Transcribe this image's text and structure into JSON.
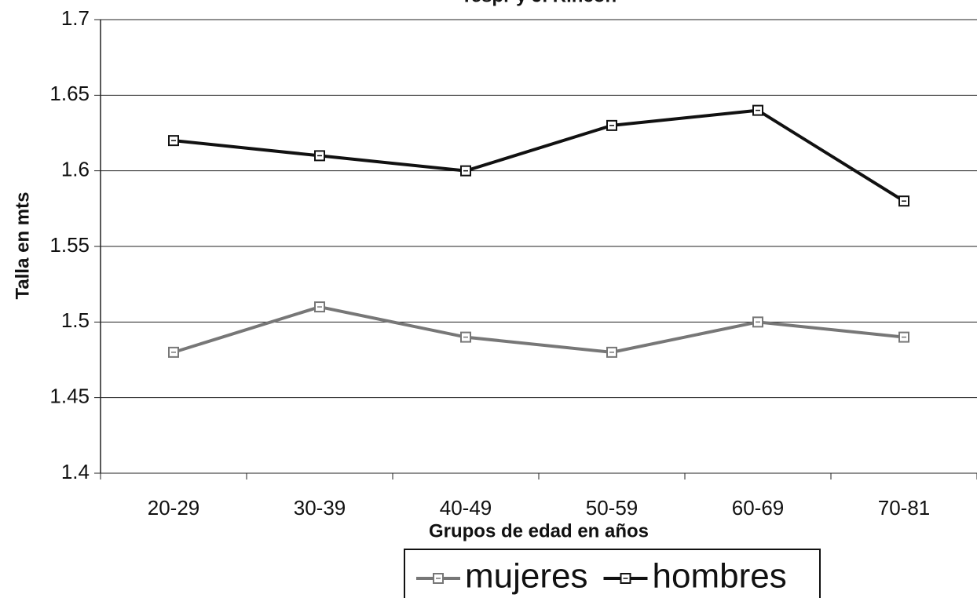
{
  "chart_data": {
    "type": "line",
    "title": "Tespr y J. Rincón",
    "x_label": "Grupos de edad en años",
    "y_label": "Talla en mts",
    "categories": [
      "20-29",
      "30-39",
      "40-49",
      "50-59",
      "60-69",
      "70-81"
    ],
    "series": [
      {
        "name": "mujeres",
        "color": "#777777",
        "values": [
          1.48,
          1.51,
          1.49,
          1.48,
          1.5,
          1.49
        ]
      },
      {
        "name": "hombres",
        "color": "#111111",
        "values": [
          1.62,
          1.61,
          1.6,
          1.63,
          1.64,
          1.58
        ]
      }
    ],
    "ylim": [
      1.4,
      1.7
    ],
    "yticks": [
      1.4,
      1.45,
      1.5,
      1.55,
      1.6,
      1.65,
      1.7
    ],
    "grid": true,
    "legend": "bottom"
  }
}
